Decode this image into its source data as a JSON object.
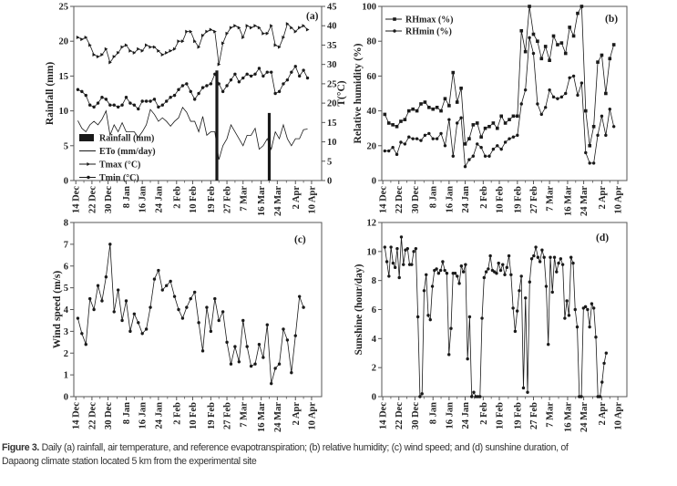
{
  "caption": {
    "label": "Figure 3.",
    "line1": " Daily (a) rainfall, air temperature, and reference evapotranspiration; (b) relative humidity; (c) wind speed; and (d) sunshine duration, of",
    "line2": "Dapaong climate station located 5 km from the experimental site"
  },
  "colors": {
    "ink": "#1a1a1a",
    "frame": "#555555"
  },
  "chart_data": [
    {
      "type": "line",
      "panel_label": "(a)",
      "xlim": [
        -1,
        122
      ],
      "x_unit": "days since 14 Dec",
      "x_tick_days": [
        0,
        8,
        16,
        25,
        33,
        41,
        50,
        58,
        67,
        75,
        83,
        92,
        100,
        109,
        117
      ],
      "x_tick_labels": [
        "14 Dec",
        "22 Dec",
        "30 Dec",
        "8 Jan",
        "16 Jan",
        "24 Jan",
        "2 Feb",
        "10 Feb",
        "19 Feb",
        "27 Feb",
        "7 Mar",
        "16 Mar",
        "24 Mar",
        "2 Apr",
        "10 Apr"
      ],
      "y_left": {
        "label": "Rainfall (mm)",
        "lim": [
          0,
          25
        ],
        "ticks": [
          0,
          5,
          10,
          15,
          20,
          25
        ]
      },
      "y_right": {
        "label": "T(°C)",
        "lim": [
          0,
          45
        ],
        "ticks": [
          0,
          5,
          10,
          15,
          20,
          25,
          30,
          35,
          40,
          45
        ]
      },
      "legend_position": "bottom-left",
      "series": [
        {
          "name": "Rainfall (mm)",
          "kind": "bar",
          "axis": "left",
          "x": [
            70,
            96
          ],
          "y": [
            15.8,
            9.7
          ]
        },
        {
          "name": "ETo (mm/day)",
          "kind": "line",
          "marker": "none",
          "axis": "left",
          "x_start": 1,
          "x_step": 2,
          "y": [
            8.6,
            7.5,
            7,
            8,
            8.5,
            8,
            8.8,
            10,
            6.5,
            8,
            7,
            8.3,
            7,
            7,
            7,
            6.2,
            7,
            8,
            10.2,
            9.5,
            8.5,
            9,
            8.5,
            7.8,
            8.5,
            9,
            10.5,
            9.8,
            8.5,
            8.5,
            7,
            9.2,
            6.5,
            7,
            7,
            3,
            5,
            6,
            8,
            7,
            6,
            5,
            6.5,
            6.5,
            7.5,
            4.5,
            5,
            6,
            4.5,
            7,
            6,
            8,
            6,
            5,
            6,
            6,
            7.3,
            7.4
          ]
        },
        {
          "name": "Tmax (°C)",
          "kind": "line",
          "marker": "triangle",
          "axis": "right",
          "x_start": 1,
          "x_step": 2,
          "y": [
            37,
            36.5,
            37,
            35,
            32.5,
            32,
            32.5,
            34,
            30.5,
            32,
            33,
            34.5,
            35,
            33.5,
            33,
            34,
            33.5,
            35,
            34.5,
            34.5,
            33.5,
            32.5,
            33,
            33.5,
            34,
            36,
            36,
            38.5,
            38.5,
            36,
            34.5,
            37.5,
            38.5,
            39,
            38.5,
            30,
            35.5,
            38,
            39.5,
            40,
            39.5,
            37,
            40,
            39.5,
            40,
            39.5,
            38,
            38,
            40,
            35,
            34.5,
            37,
            40.5,
            39.5,
            38.5,
            39.5,
            40,
            39
          ]
        },
        {
          "name": "Tmin (°C)",
          "kind": "line",
          "marker": "circle",
          "axis": "right",
          "x_start": 1,
          "x_step": 2,
          "y": [
            23.5,
            23,
            22,
            19.5,
            19,
            20,
            21.5,
            21,
            19.5,
            19.5,
            19,
            19.5,
            21.5,
            20,
            19.5,
            18.5,
            20.5,
            20.5,
            20.5,
            21,
            19,
            19.5,
            20.5,
            21.5,
            22,
            23.5,
            24.5,
            25,
            23,
            21,
            22.5,
            24,
            24.5,
            25,
            27.5,
            25,
            23,
            24.5,
            26,
            27.5,
            25.5,
            26.5,
            27.5,
            27,
            27.5,
            29,
            27,
            28,
            28,
            22.5,
            23,
            25,
            26,
            28,
            29.5,
            27,
            28.5,
            26.5
          ]
        }
      ]
    },
    {
      "type": "line",
      "panel_label": "(b)",
      "xlim": [
        -0.5,
        121.5
      ],
      "x_unit": "days since 14 Dec",
      "x_tick_days": [
        0,
        8,
        16,
        25,
        33,
        41,
        50,
        58,
        67,
        75,
        83,
        92,
        100,
        109,
        117
      ],
      "x_tick_labels": [
        "14 Dec",
        "22 Dec",
        "30 Dec",
        "8 Jan",
        "16 Jan",
        "24 Jan",
        "2 Feb",
        "10 Feb",
        "19 Feb",
        "27 Feb",
        "7 Mar",
        "16 Mar",
        "24 Mar",
        "2 Apr",
        "10 Apr"
      ],
      "y_left": {
        "label": "Relative humidity (%)",
        "lim": [
          0,
          100
        ],
        "ticks": [
          0,
          20,
          40,
          60,
          80,
          100
        ]
      },
      "legend_position": "top-left",
      "series": [
        {
          "name": "RHmax (%)",
          "kind": "line",
          "marker": "square",
          "axis": "left",
          "x_start": 1,
          "x_step": 2,
          "y": [
            38,
            33,
            32,
            31,
            34,
            35,
            40,
            41,
            40,
            44,
            45,
            42,
            41,
            42,
            40,
            47,
            43,
            62,
            45,
            53,
            21,
            24,
            32,
            33,
            25,
            30,
            31,
            33,
            30,
            37,
            33,
            35,
            37,
            37,
            86,
            74,
            100,
            84,
            80,
            70,
            77,
            69,
            83,
            78,
            79,
            73,
            88,
            83,
            96,
            100,
            40,
            20,
            31,
            68,
            72,
            50,
            70,
            78
          ]
        },
        {
          "name": "RHmin (%)",
          "kind": "line",
          "marker": "circle",
          "axis": "left",
          "x_start": 1,
          "x_step": 2,
          "y": [
            17,
            17,
            19,
            15,
            22,
            21,
            25,
            24,
            24,
            23,
            26,
            27,
            24,
            24,
            27,
            20,
            35,
            14,
            33,
            36,
            8,
            12,
            14,
            21,
            19,
            14,
            14,
            18,
            20,
            18,
            22,
            24,
            25,
            26,
            44,
            52,
            82,
            73,
            44,
            38,
            42,
            52,
            48,
            47,
            48,
            50,
            59,
            60,
            49,
            56,
            16,
            10,
            10,
            26,
            37,
            26,
            41,
            31
          ]
        }
      ]
    },
    {
      "type": "line",
      "panel_label": "(c)",
      "xlim": [
        -1,
        122
      ],
      "x_unit": "days since 14 Dec",
      "x_tick_days": [
        0,
        8,
        16,
        25,
        33,
        41,
        50,
        58,
        67,
        75,
        83,
        92,
        100,
        109,
        117
      ],
      "x_tick_labels": [
        "14 Dec",
        "22 Dec",
        "30 Dec",
        "8 Jan",
        "16 Jan",
        "24 Jan",
        "2 Feb",
        "10 Feb",
        "19 Feb",
        "27 Feb",
        "7 Mar",
        "16 Mar",
        "24 Mar",
        "2 Apr",
        "10 Apr"
      ],
      "y_left": {
        "label": "Wind speed (m/s)",
        "lim": [
          0,
          8
        ],
        "ticks": [
          0,
          1,
          2,
          3,
          4,
          5,
          6,
          7,
          8
        ]
      },
      "series": [
        {
          "name": "Wind speed",
          "kind": "line",
          "marker": "circle",
          "axis": "left",
          "x_start": 1,
          "x_step": 2,
          "y": [
            3.6,
            2.9,
            2.4,
            4.5,
            4.0,
            5.1,
            4.4,
            5.5,
            7.0,
            3.9,
            4.9,
            3.5,
            4.4,
            3.0,
            3.8,
            3.4,
            2.9,
            3.1,
            4.1,
            5.4,
            5.8,
            4.9,
            5.1,
            5.3,
            4.6,
            4.0,
            3.6,
            4.1,
            4.5,
            4.8,
            3.4,
            2.1,
            4.1,
            3.0,
            4.5,
            3.5,
            3.9,
            2.5,
            1.5,
            2.3,
            1.6,
            3.5,
            2.3,
            1.4,
            1.5,
            2.4,
            1.8,
            3.3,
            0.6,
            1.3,
            1.5,
            3.1,
            2.6,
            1.1,
            2.8,
            4.6,
            4.1
          ]
        }
      ]
    },
    {
      "type": "line",
      "panel_label": "(d)",
      "xlim": [
        -0.5,
        121.5
      ],
      "x_unit": "days since 14 Dec",
      "x_tick_days": [
        0,
        8,
        16,
        25,
        33,
        41,
        50,
        58,
        67,
        75,
        83,
        92,
        100,
        109,
        117
      ],
      "x_tick_labels": [
        "14 Dec",
        "22 Dec",
        "30 Dec",
        "8 Jan",
        "16 Jan",
        "24 Jan",
        "2 Feb",
        "10 Feb",
        "19 Feb",
        "27 Feb",
        "7 Mar",
        "16 Mar",
        "24 Mar",
        "2 Apr",
        "10 Apr"
      ],
      "y_left": {
        "label": "Sunshine (hour/day)",
        "lim": [
          0,
          12
        ],
        "ticks": [
          0,
          2,
          4,
          6,
          8,
          10,
          12
        ]
      },
      "series": [
        {
          "name": "Sunshine",
          "kind": "line",
          "marker": "circle",
          "axis": "left",
          "x_start": 1,
          "x_step": 1.03,
          "y": [
            10.3,
            9.3,
            8.3,
            10.3,
            9.2,
            8.9,
            10.2,
            8.2,
            11,
            9.1,
            10.1,
            10.2,
            9.1,
            9.1,
            10.0,
            10.2,
            5.5,
            0,
            0.2,
            7.3,
            8.4,
            5.6,
            5.3,
            7.6,
            8.7,
            8.8,
            8.5,
            8.7,
            9.3,
            8.7,
            8.5,
            2.9,
            4.7,
            8.5,
            8.5,
            8.3,
            7.8,
            9.0,
            8.6,
            9.1,
            2.6,
            5.5,
            0,
            0.3,
            0,
            0,
            0,
            5.4,
            8.2,
            8.6,
            8.8,
            9.7,
            8.7,
            8.6,
            8.5,
            9.2,
            8.7,
            9.1,
            8.4,
            8.9,
            9.7,
            8.4,
            6.1,
            4.5,
            5.9,
            7.3,
            8.3,
            0.6,
            6.8,
            0.3,
            7.9,
            9.5,
            9.7,
            10.3,
            9.6,
            9.3,
            10.1,
            9.6,
            7.6,
            3.6,
            9.6,
            7.2,
            9.6,
            8.6,
            9.2,
            9.5,
            9.1,
            5.4,
            6.6,
            5.6,
            9.6,
            9.2,
            6.0,
            4.8,
            0,
            0,
            6.1,
            6.2,
            6.0,
            4.8,
            6.4,
            6.1,
            4.1,
            0,
            0,
            1.0,
            2.3,
            3.0
          ]
        }
      ]
    }
  ]
}
